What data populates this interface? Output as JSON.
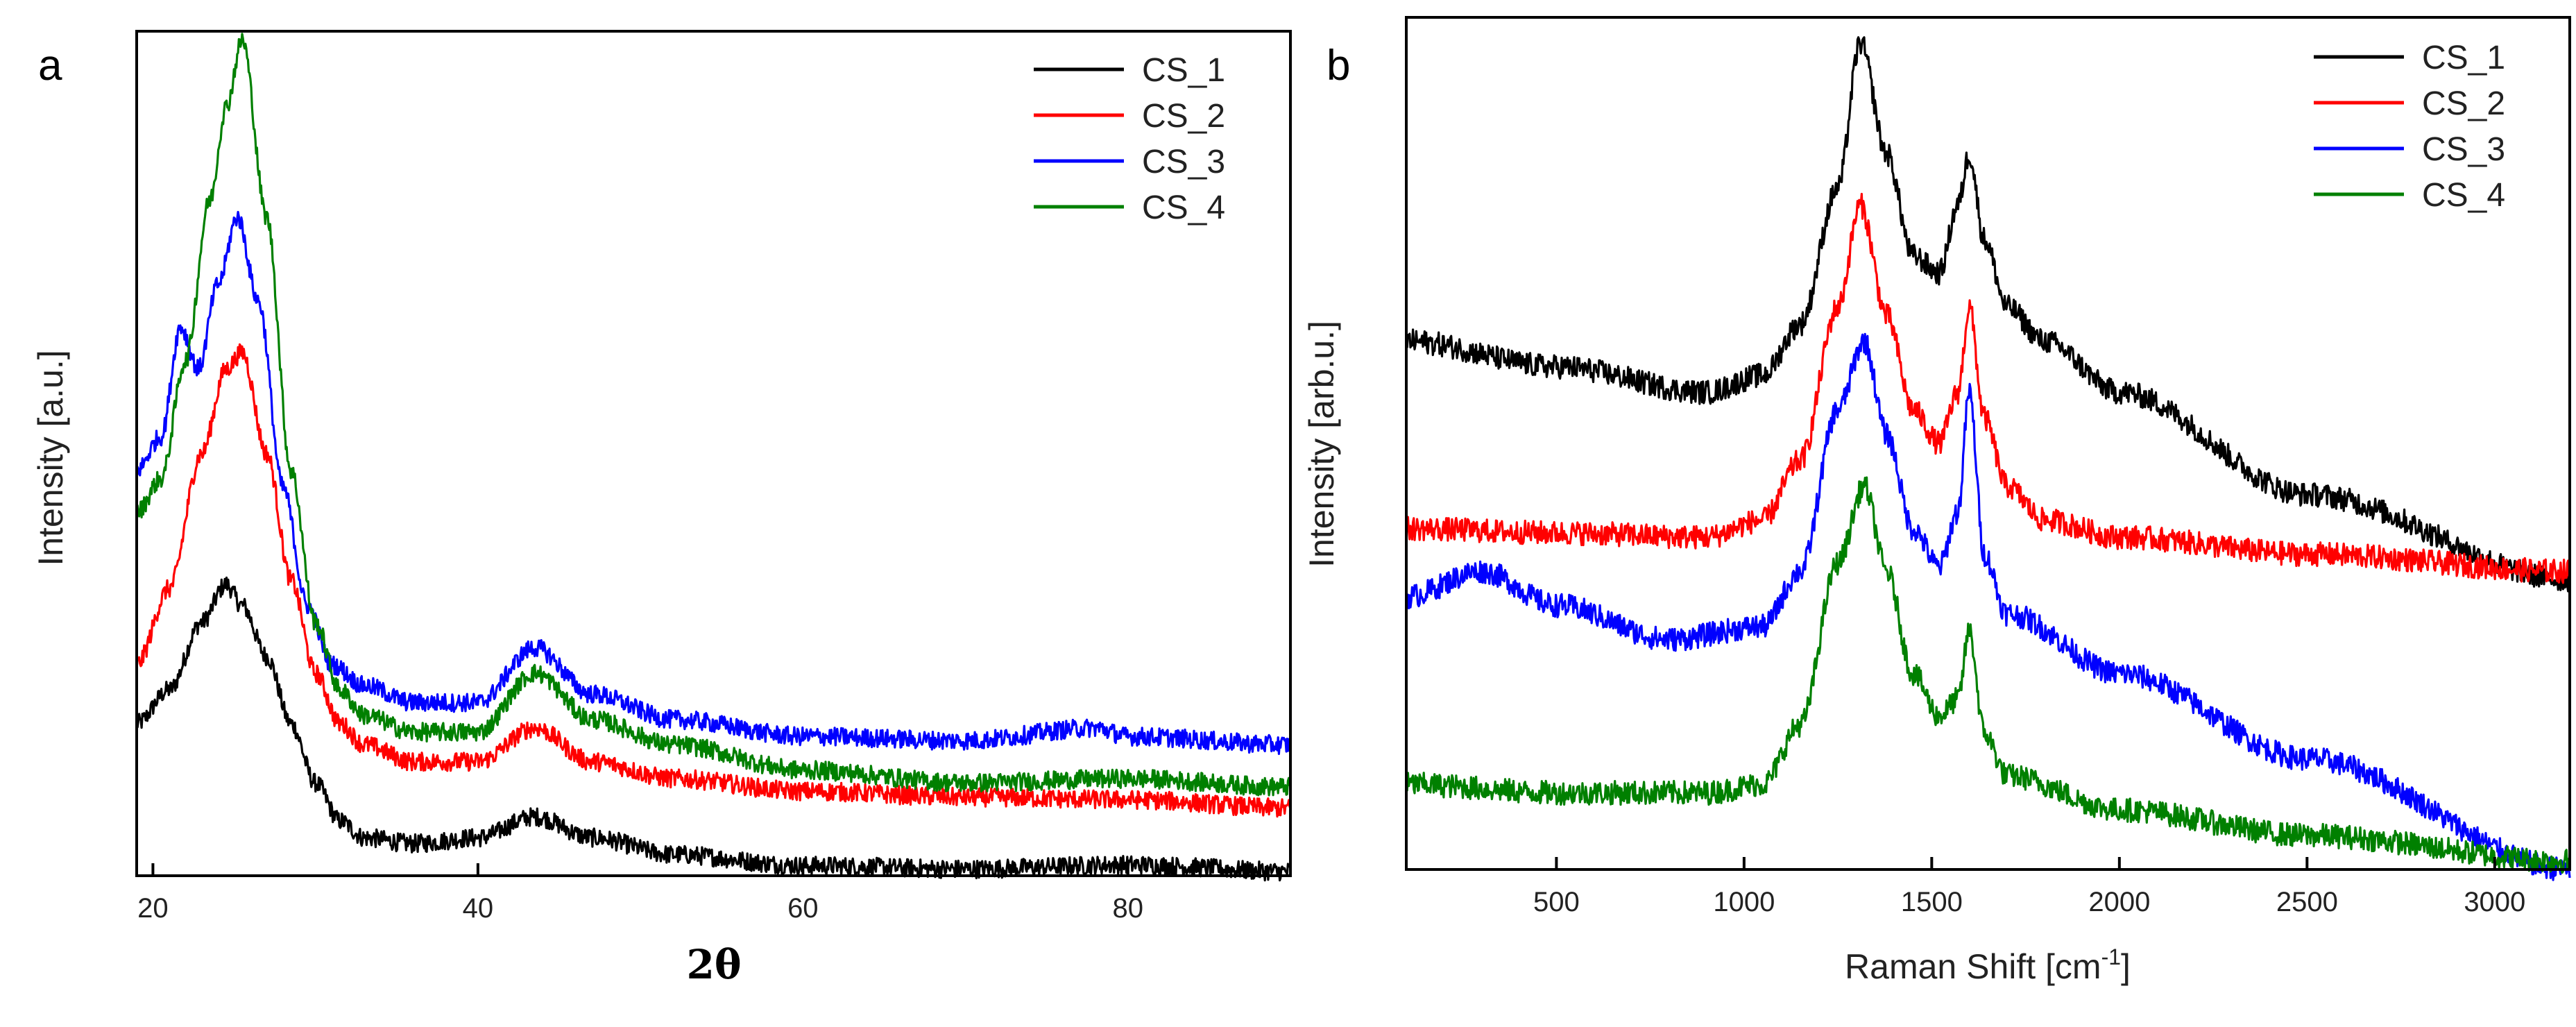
{
  "figure": {
    "background": "#ffffff"
  },
  "chart_data": [
    {
      "type": "line",
      "panel": "a",
      "title": "",
      "xlabel": "2θ",
      "ylabel": "Intensity [a.u.]",
      "xlim": [
        19,
        90
      ],
      "ylim": [
        0,
        100
      ],
      "xticks": [
        20,
        40,
        60,
        80
      ],
      "yticks": [],
      "grid": false,
      "legend_position": "top-right",
      "series": [
        {
          "name": "CS_1",
          "color": "#000000",
          "x": [
            19,
            21,
            23,
            24.5,
            25.5,
            27,
            28.5,
            30,
            31.5,
            33,
            36,
            40,
            43.5,
            47,
            52,
            60,
            70,
            80,
            90
          ],
          "y": [
            18,
            22,
            30,
            34.5,
            32,
            26,
            18,
            11,
            6.5,
            4.5,
            3.8,
            4.5,
            7,
            4.5,
            2.5,
            1.2,
            0.8,
            1.3,
            0.5
          ]
        },
        {
          "name": "CS_2",
          "color": "#ff0000",
          "x": [
            19,
            21,
            23,
            24.5,
            25.5,
            27,
            28.5,
            30,
            31.5,
            33,
            36,
            40,
            43.5,
            47,
            52,
            60,
            70,
            80,
            90
          ],
          "y": [
            25,
            34,
            50,
            60,
            62,
            50,
            35,
            24,
            18,
            15.5,
            13.5,
            13.5,
            17.5,
            13.5,
            11.5,
            10,
            9.3,
            9,
            8
          ]
        },
        {
          "name": "CS_3",
          "color": "#0000ff",
          "x": [
            19,
            20.5,
            21.7,
            22.8,
            24,
            25.2,
            26.5,
            28,
            29.5,
            31,
            33,
            36,
            40,
            43.5,
            47,
            52,
            60,
            70,
            78,
            80,
            90
          ],
          "y": [
            48,
            52,
            65,
            60,
            70,
            78,
            68,
            46,
            32,
            25,
            22.5,
            20.5,
            20.5,
            27,
            21.5,
            18.5,
            16.5,
            16,
            17.5,
            16.5,
            15.5
          ]
        },
        {
          "name": "CS_4",
          "color": "#008000",
          "x": [
            19,
            20.5,
            22,
            23.5,
            24.5,
            25.5,
            27,
            28.5,
            30,
            31.5,
            33,
            36,
            40,
            43.5,
            47,
            52,
            60,
            70,
            80,
            90
          ],
          "y": [
            43,
            47,
            61,
            80,
            91,
            99,
            78,
            48,
            30,
            22,
            19,
            17,
            17,
            24,
            18.5,
            15.5,
            12.5,
            11,
            11.5,
            10.5
          ]
        }
      ]
    },
    {
      "type": "line",
      "panel": "b",
      "title": "",
      "xlabel": "Raman Shift [cm-1]",
      "ylabel": "Intensity [arb.u.]",
      "xlim": [
        100,
        3200
      ],
      "ylim": [
        0,
        100
      ],
      "xticks": [
        500,
        1000,
        1500,
        2000,
        2500,
        3000
      ],
      "yticks": [],
      "grid": false,
      "legend_position": "top-right",
      "series": [
        {
          "name": "CS_1",
          "color": "#000000",
          "x": [
            100,
            500,
            900,
            1050,
            1150,
            1250,
            1310,
            1380,
            1450,
            1520,
            1570,
            1600,
            1640,
            1700,
            1800,
            2000,
            2500,
            3200
          ],
          "y": [
            62,
            59,
            56,
            58,
            64,
            80,
            97,
            84,
            72,
            70,
            78,
            84,
            74,
            66,
            62,
            56,
            44,
            34
          ]
        },
        {
          "name": "CS_2",
          "color": "#ff0000",
          "x": [
            100,
            500,
            900,
            1050,
            1150,
            1250,
            1310,
            1380,
            1450,
            1520,
            1570,
            1600,
            1640,
            1700,
            1800,
            2000,
            2500,
            3200
          ],
          "y": [
            40,
            39.5,
            39,
            41,
            48,
            66,
            78,
            65,
            54,
            50,
            56,
            66,
            53,
            45,
            41,
            39,
            37,
            35
          ]
        },
        {
          "name": "CS_3",
          "color": "#0000ff",
          "x": [
            100,
            300,
            500,
            800,
            1050,
            1150,
            1250,
            1320,
            1380,
            1450,
            1520,
            1570,
            1600,
            1640,
            1700,
            2000,
            2500,
            3200
          ],
          "y": [
            32,
            35,
            31,
            27,
            28.5,
            35,
            54,
            62,
            51,
            40,
            35.5,
            42,
            56,
            37,
            30,
            23,
            13,
            0
          ]
        },
        {
          "name": "CS_4",
          "color": "#008000",
          "x": [
            100,
            500,
            900,
            1050,
            1150,
            1250,
            1320,
            1380,
            1450,
            1520,
            1570,
            1600,
            1640,
            1700,
            2000,
            2500,
            3200
          ],
          "y": [
            10,
            9,
            9,
            10,
            17,
            36,
            45,
            35,
            23,
            18,
            20,
            28,
            16,
            11,
            7,
            4,
            1
          ]
        }
      ]
    }
  ]
}
